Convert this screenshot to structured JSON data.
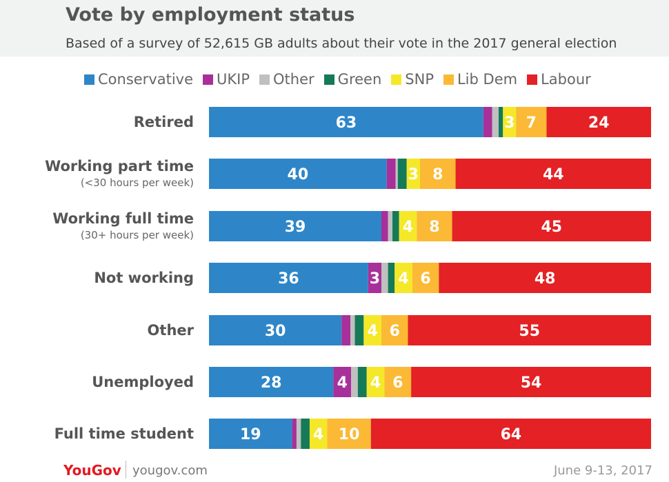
{
  "chart_data": {
    "type": "bar",
    "orientation": "horizontal",
    "stacked": true,
    "title": "Vote by employment status",
    "subtitle": "Based of a survey of 52,615 GB adults about their vote in the 2017 general election",
    "legend_position": "top",
    "categories": [
      {
        "label": "Retired",
        "sublabel": ""
      },
      {
        "label": "Working part time",
        "sublabel": "(<30 hours per week)"
      },
      {
        "label": "Working full time",
        "sublabel": "(30+ hours per week)"
      },
      {
        "label": "Not working",
        "sublabel": ""
      },
      {
        "label": "Other",
        "sublabel": ""
      },
      {
        "label": "Unemployed",
        "sublabel": ""
      },
      {
        "label": "Full time student",
        "sublabel": ""
      }
    ],
    "series": [
      {
        "name": "Conservative",
        "color": "#2e86c8",
        "values": [
          63,
          40,
          39,
          36,
          30,
          28,
          19
        ]
      },
      {
        "name": "UKIP",
        "color": "#a8309a",
        "values": [
          2,
          2,
          1.5,
          3,
          2,
          4,
          1
        ]
      },
      {
        "name": "Other",
        "color": "#c0c0c0",
        "values": [
          1.5,
          0.5,
          1,
          1.5,
          1,
          1.5,
          1
        ]
      },
      {
        "name": "Green",
        "color": "#147a58",
        "values": [
          1,
          2,
          1.5,
          1.5,
          2,
          2,
          2
        ]
      },
      {
        "name": "SNP",
        "color": "#f5e829",
        "values": [
          3,
          3,
          4,
          4,
          4,
          4,
          4
        ]
      },
      {
        "name": "Lib Dem",
        "color": "#fbb935",
        "values": [
          7,
          8,
          8,
          6,
          6,
          6,
          10
        ]
      },
      {
        "name": "Labour",
        "color": "#e42124",
        "values": [
          24,
          44,
          45,
          48,
          55,
          54,
          64
        ]
      }
    ],
    "data_labels": [
      [
        "63",
        "",
        "",
        "",
        "3",
        "7",
        "24"
      ],
      [
        "40",
        "",
        "",
        "",
        "3",
        "8",
        "44"
      ],
      [
        "39",
        "",
        "",
        "",
        "4",
        "8",
        "45"
      ],
      [
        "36",
        "3",
        "",
        "",
        "4",
        "6",
        "48"
      ],
      [
        "30",
        "",
        "",
        "",
        "4",
        "6",
        "55"
      ],
      [
        "28",
        "4",
        "",
        "",
        "4",
        "6",
        "54"
      ],
      [
        "19",
        "",
        "",
        "",
        "4",
        "10",
        "64"
      ]
    ]
  },
  "footer": {
    "brand": "YouGov",
    "site": "yougov.com",
    "date": "June 9-13, 2017"
  }
}
